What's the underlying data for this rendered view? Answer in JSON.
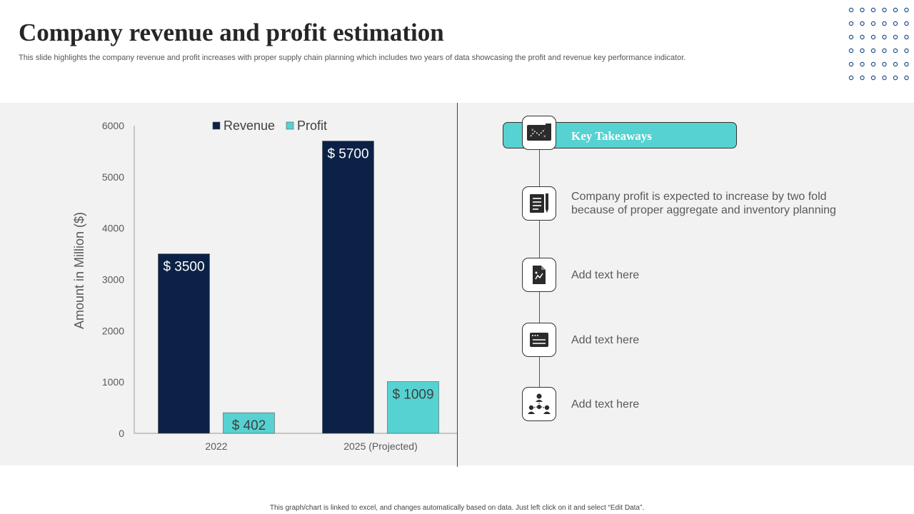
{
  "header": {
    "title": "Company revenue and profit estimation",
    "subtitle": "This slide highlights the company revenue and profit increases with proper supply chain planning which includes two years of data showcasing the profit and revenue key performance indicator."
  },
  "chart_data": {
    "type": "bar",
    "categories": [
      "2022",
      "2025 (Projected)"
    ],
    "series": [
      {
        "name": "Revenue",
        "values": [
          3500,
          5700
        ],
        "labels": [
          "$ 3500",
          "$ 5700"
        ],
        "color": "#0b2146"
      },
      {
        "name": "Profit",
        "values": [
          402,
          1009
        ],
        "labels": [
          "$ 402",
          "$ 1009"
        ],
        "color": "#56d2d2"
      }
    ],
    "title": "",
    "xlabel": "",
    "ylabel": "Amount in Million ($)",
    "ylim": [
      0,
      6000
    ],
    "yticks": [
      0,
      1000,
      2000,
      3000,
      4000,
      5000,
      6000
    ],
    "grid": false,
    "legend": "top-center"
  },
  "takeaways": {
    "header": "Key Takeaways",
    "items": [
      {
        "text": "Company profit is expected to increase by two fold because of proper aggregate and inventory  planning",
        "icon": "document-pencil-icon"
      },
      {
        "text": "Add text here",
        "icon": "file-chart-icon"
      },
      {
        "text": "Add text here",
        "icon": "window-list-icon"
      },
      {
        "text": "Add text here",
        "icon": "team-network-icon"
      }
    ]
  },
  "footer": {
    "note": "This graph/chart is linked to excel, and changes automatically based on data. Just left click on it and select “Edit Data”."
  }
}
